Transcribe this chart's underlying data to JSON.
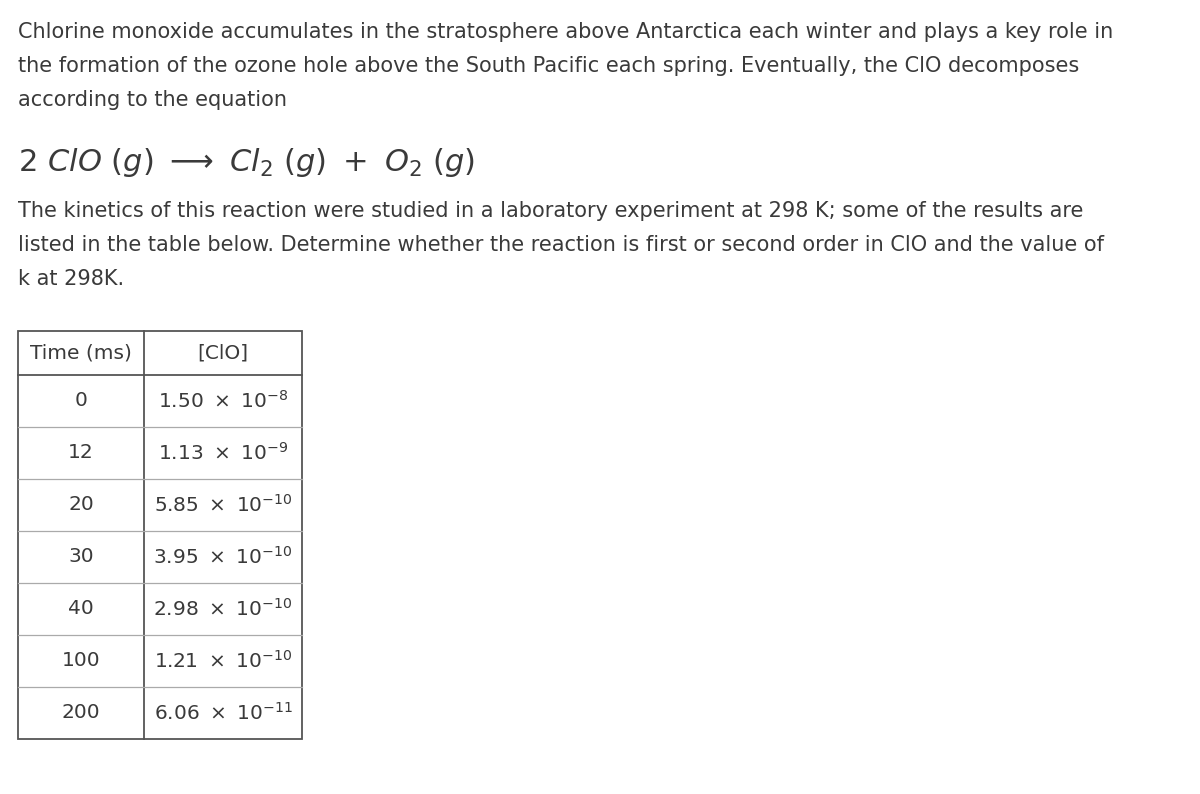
{
  "bg_color": "#ffffff",
  "text_color": "#3a3a3a",
  "para1_lines": [
    "Chlorine monoxide accumulates in the stratosphere above Antarctica each winter and plays a key role in",
    "the formation of the ozone hole above the South Pacific each spring. Eventually, the ClO decomposes",
    "according to the equation"
  ],
  "para2_lines": [
    "The kinetics of this reaction were studied in a laboratory experiment at 298 K; some of the results are",
    "listed in the table below. Determine whether the reaction is first or second order in ClO and the value of",
    "k at 298K."
  ],
  "table_col1_values": [
    "0",
    "12",
    "20",
    "30",
    "40",
    "100",
    "200"
  ],
  "table_col2_mantissa": [
    "1.50",
    "1.13",
    "5.85",
    "3.95",
    "2.98",
    "1.21",
    "6.06"
  ],
  "table_col2_exponents": [
    "-8",
    "-9",
    "-10",
    "-10",
    "-10",
    "-10",
    "-11"
  ],
  "font_size_body": 15,
  "font_size_equation": 22,
  "font_size_table": 14.5
}
